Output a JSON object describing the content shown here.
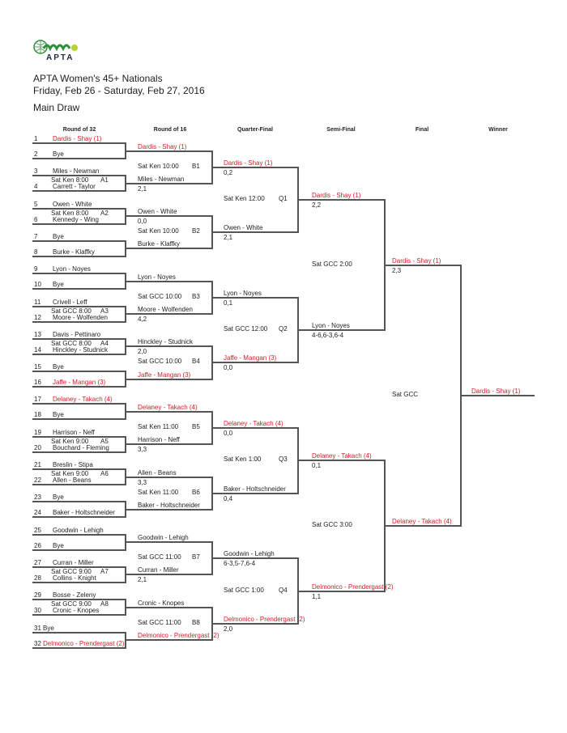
{
  "logo": {
    "text": "APTA"
  },
  "header": {
    "title": "APTA Women's 45+ Nationals",
    "dates": "Friday, Feb 26 - Saturday, Feb 27, 2016",
    "draw": "Main Draw"
  },
  "colors": {
    "seeded": "#d0202a",
    "lines": "#555555",
    "text": "#222222"
  },
  "columns": [
    "Round of 32",
    "Round of 16",
    "Quarter-Final",
    "Semi-Final",
    "Final",
    "Winner"
  ],
  "rounds": {
    "r32": [
      {
        "num": "1",
        "name": "Dardis - Shay (1)",
        "seeded": true
      },
      {
        "num": "2",
        "name": "Bye"
      },
      {
        "num": "3",
        "name": "Miles - Newman"
      },
      {
        "num": "4",
        "name": "Carrett - Taylor"
      },
      {
        "num": "5",
        "name": "Owen - White"
      },
      {
        "num": "6",
        "name": "Kennedy - Wing"
      },
      {
        "num": "7",
        "name": "Bye"
      },
      {
        "num": "8",
        "name": "Burke - Klaffky"
      },
      {
        "num": "9",
        "name": "Lyon - Noyes"
      },
      {
        "num": "10",
        "name": "Bye"
      },
      {
        "num": "11",
        "name": "Crivell - Leff"
      },
      {
        "num": "12",
        "name": "Moore - Wolfenden"
      },
      {
        "num": "13",
        "name": "Davis - Pettinaro"
      },
      {
        "num": "14",
        "name": "Hinckley - Studnick"
      },
      {
        "num": "15",
        "name": "Bye"
      },
      {
        "num": "16",
        "name": "Jaffe - Mangan (3)",
        "seeded": true
      },
      {
        "num": "17",
        "name": "Delaney - Takach (4)",
        "seeded": true
      },
      {
        "num": "18",
        "name": "Bye"
      },
      {
        "num": "19",
        "name": "Harrison - Neff"
      },
      {
        "num": "20",
        "name": "Bouchard - Fleming"
      },
      {
        "num": "21",
        "name": "Breslin - Stipa"
      },
      {
        "num": "22",
        "name": "Allen - Beans"
      },
      {
        "num": "23",
        "name": "Bye"
      },
      {
        "num": "24",
        "name": "Baker - Holtschneider"
      },
      {
        "num": "25",
        "name": "Goodwin - Lehigh"
      },
      {
        "num": "26",
        "name": "Bye"
      },
      {
        "num": "27",
        "name": "Curran - Miller"
      },
      {
        "num": "28",
        "name": "Collins - Knight"
      },
      {
        "num": "29",
        "name": "Bosse - Zeleny"
      },
      {
        "num": "30",
        "name": "Cronic - Knopes"
      },
      {
        "num": "31",
        "name": "Bye"
      },
      {
        "num": "32",
        "name": "Delmonico - Prendergast (2)",
        "seeded": true
      }
    ],
    "r16": [
      {
        "name": "Dardis - Shay (1)",
        "seeded": true,
        "score": ""
      },
      {
        "name": "Miles - Newman",
        "score": "2,1"
      },
      {
        "name": "Owen - White",
        "score": "0,0"
      },
      {
        "name": "Burke - Klaffky",
        "score": ""
      },
      {
        "name": "Lyon - Noyes",
        "score": ""
      },
      {
        "name": "Moore - Wolfenden",
        "score": "4,2"
      },
      {
        "name": "Hinckley - Studnick",
        "score": "2,0"
      },
      {
        "name": "Jaffe - Mangan (3)",
        "seeded": true,
        "score": ""
      },
      {
        "name": "Delaney - Takach (4)",
        "seeded": true,
        "score": ""
      },
      {
        "name": "Harrison - Neff",
        "score": "3,3"
      },
      {
        "name": "Allen - Beans",
        "score": "3,3"
      },
      {
        "name": "Baker - Holtschneider",
        "score": ""
      },
      {
        "name": "Goodwin - Lehigh",
        "score": ""
      },
      {
        "name": "Curran - Miller",
        "score": "2,1"
      },
      {
        "name": "Cronic - Knopes",
        "score": ""
      },
      {
        "name": "Delmonico - Prendergast (2)",
        "seeded": true,
        "score": ""
      }
    ],
    "qf": [
      {
        "name": "Dardis - Shay (1)",
        "seeded": true,
        "score": "0,2"
      },
      {
        "name": "Owen - White",
        "score": "2,1"
      },
      {
        "name": "Lyon - Noyes",
        "score": "0,1"
      },
      {
        "name": "Jaffe - Mangan (3)",
        "seeded": true,
        "score": "0,0"
      },
      {
        "name": "Delaney - Takach (4)",
        "seeded": true,
        "score": "0,0"
      },
      {
        "name": "Baker - Holtschneider",
        "score": "0,4"
      },
      {
        "name": "Goodwin - Lehigh",
        "score": "6-3,5-7,6-4"
      },
      {
        "name": "Delmonico - Prendergast (2)",
        "seeded": true,
        "score": "2,0"
      }
    ],
    "sf": [
      {
        "name": "Dardis - Shay (1)",
        "seeded": true,
        "score": "2,2"
      },
      {
        "name": "Lyon - Noyes",
        "score": "4-6,6-3,6-4"
      },
      {
        "name": "Delaney - Takach (4)",
        "seeded": true,
        "score": "0,1"
      },
      {
        "name": "Delmonico - Prendergast (2)",
        "seeded": true,
        "score": "1,1"
      }
    ],
    "final": [
      {
        "name": "Dardis - Shay (1)",
        "seeded": true,
        "score": "2,3"
      },
      {
        "name": "Delaney - Takach (4)",
        "seeded": true,
        "score": ""
      }
    ],
    "winner": [
      {
        "name": "Dardis - Shay (1)",
        "seeded": true,
        "score": ""
      }
    ]
  },
  "matches": {
    "r32": [
      null,
      {
        "time": "Sat Ken 8:00",
        "code": "A1"
      },
      {
        "time": "Sat Ken 8:00",
        "code": "A2"
      },
      null,
      null,
      {
        "time": "Sat GCC 8:00",
        "code": "A3"
      },
      {
        "time": "Sat GCC 8:00",
        "code": "A4"
      },
      null,
      null,
      {
        "time": "Sat Ken 9:00",
        "code": "A5"
      },
      {
        "time": "Sat Ken 9:00",
        "code": "A6"
      },
      null,
      null,
      {
        "time": "Sat GCC 9:00",
        "code": "A7"
      },
      {
        "time": "Sat GCC 9:00",
        "code": "A8"
      },
      null
    ],
    "r16": [
      {
        "time": "Sat Ken 10:00",
        "code": "B1"
      },
      {
        "time": "Sat Ken 10:00",
        "code": "B2"
      },
      {
        "time": "Sat GCC 10:00",
        "code": "B3"
      },
      {
        "time": "Sat GCC 10:00",
        "code": "B4"
      },
      {
        "time": "Sat Ken 11:00",
        "code": "B5"
      },
      {
        "time": "Sat Ken 11:00",
        "code": "B6"
      },
      {
        "time": "Sat GCC 11:00",
        "code": "B7"
      },
      {
        "time": "Sat GCC 11:00",
        "code": "B8"
      }
    ],
    "qf": [
      {
        "time": "Sat Ken 12:00",
        "code": "Q1"
      },
      {
        "time": "Sat GCC 12:00",
        "code": "Q2"
      },
      {
        "time": "Sat Ken 1:00",
        "code": "Q3"
      },
      {
        "time": "Sat GCC 1:00",
        "code": "Q4"
      }
    ],
    "sf": [
      {
        "time": "Sat GCC 2:00",
        "code": ""
      },
      {
        "time": "Sat GCC 3:00",
        "code": ""
      }
    ],
    "final": [
      {
        "time": "Sat GCC",
        "code": ""
      }
    ]
  }
}
